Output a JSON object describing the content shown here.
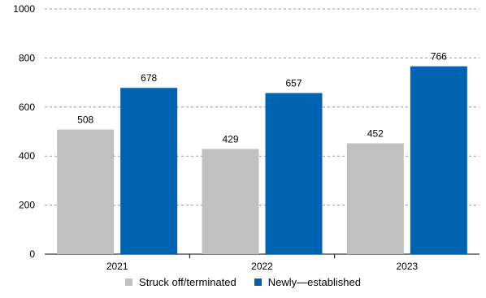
{
  "chart_data": {
    "type": "bar",
    "categories": [
      "2021",
      "2022",
      "2023"
    ],
    "series": [
      {
        "name": "Struck off/terminated",
        "values": [
          508,
          429,
          452
        ],
        "color": "#c0c0c0"
      },
      {
        "name": "Newly—established",
        "values": [
          678,
          657,
          766
        ],
        "color": "#0063b0"
      }
    ],
    "ylim": [
      0,
      1000
    ],
    "yticks": [
      0,
      200,
      400,
      600,
      800,
      1000
    ],
    "grid": true,
    "legend_position": "bottom-center",
    "data_labels": true
  }
}
